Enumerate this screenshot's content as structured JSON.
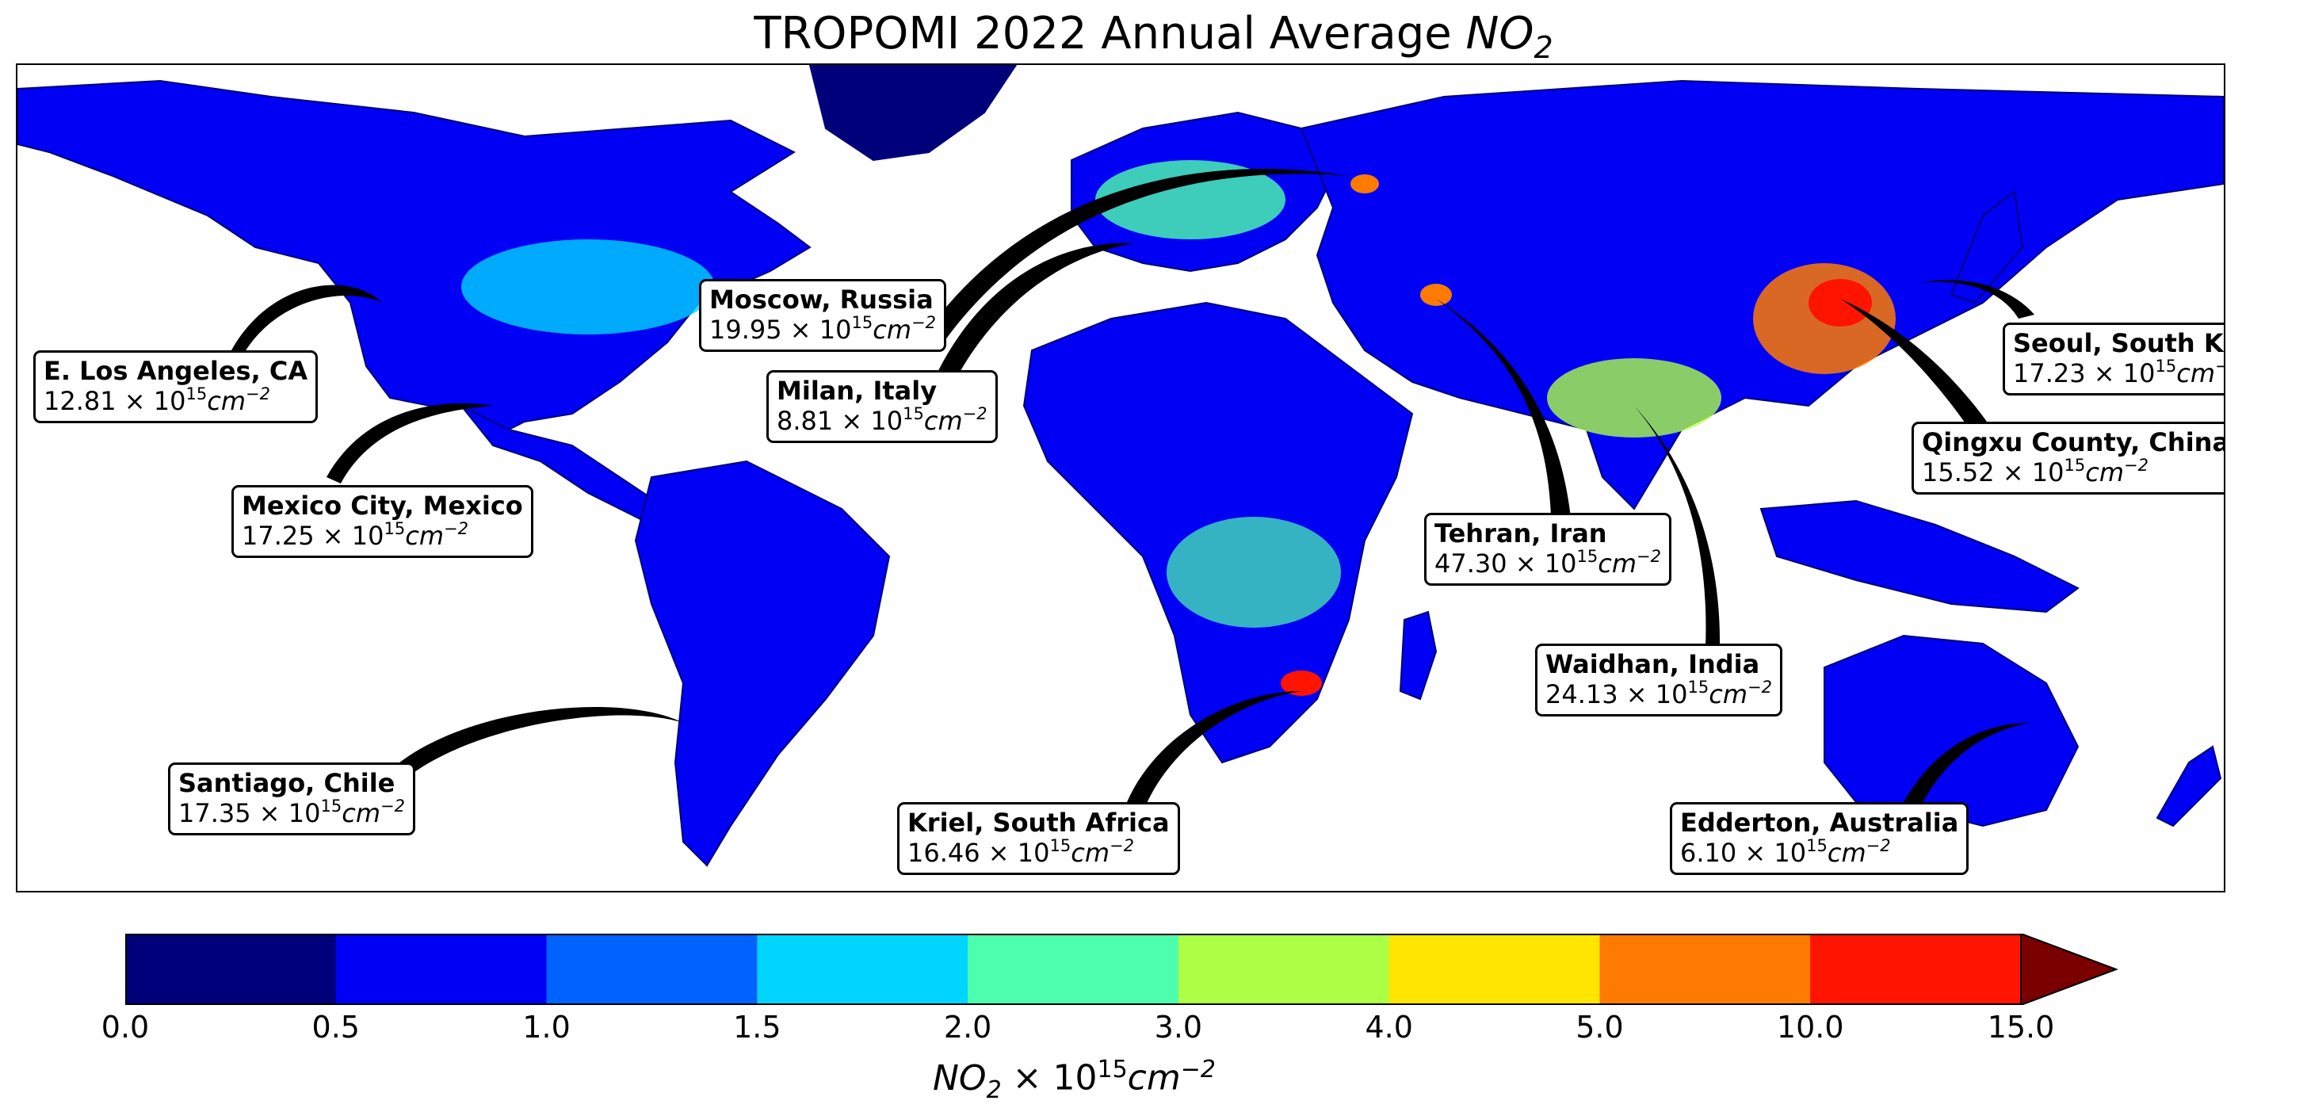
{
  "title": {
    "prefix": "TROPOMI 2022 Annual Average ",
    "species": "NO",
    "species_sub": "2"
  },
  "colorbar": {
    "boundaries": [
      0.0,
      0.5,
      1.0,
      1.5,
      2.0,
      3.0,
      4.0,
      5.0,
      10.0,
      15.0
    ],
    "tick_labels": [
      "0.0",
      "0.5",
      "1.0",
      "1.5",
      "2.0",
      "3.0",
      "4.0",
      "5.0",
      "10.0",
      "15.0"
    ],
    "colors": [
      "#00007a",
      "#0000f5",
      "#0062ff",
      "#00d5ff",
      "#4dffad",
      "#adff45",
      "#ffe600",
      "#ff7a00",
      "#ff1400",
      "#7a0000"
    ],
    "extend": "max",
    "label": {
      "species": "NO",
      "species_sub": "2",
      "mult": " × 10",
      "exp": "15",
      "unit": "cm",
      "unit_exp": "−2"
    }
  },
  "annotations": [
    {
      "city": "E. Los Angeles, CA",
      "value": "12.81"
    },
    {
      "city": "Mexico City, Mexico",
      "value": "17.25"
    },
    {
      "city": "Santiago, Chile",
      "value": "17.35"
    },
    {
      "city": "Moscow, Russia",
      "value": "19.95"
    },
    {
      "city": "Milan, Italy",
      "value": "8.81"
    },
    {
      "city": "Kriel, South Africa",
      "value": "16.46"
    },
    {
      "city": "Tehran, Iran",
      "value": "47.30"
    },
    {
      "city": "Waidhan, India",
      "value": "24.13"
    },
    {
      "city": "Qingxu County, China",
      "value": "15.52"
    },
    {
      "city": "Seoul, South Korea",
      "value": "17.23"
    },
    {
      "city": "Edderton, Australia",
      "value": "6.10"
    }
  ],
  "value_units": {
    "mult": " × 10",
    "exp": "15",
    "unit": "cm",
    "unit_exp": "−2"
  }
}
